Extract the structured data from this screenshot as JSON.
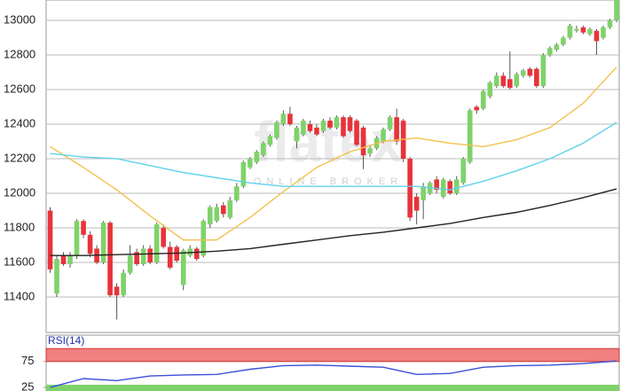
{
  "chart_data": [
    {
      "type": "candlestick",
      "watermark": {
        "logo": "flatex",
        "tagline": "ONLINE BROKER"
      },
      "xlim": [
        -0.6,
        85.4
      ],
      "ylim": [
        11195,
        13118
      ],
      "yticks": [
        11400,
        11600,
        11800,
        12000,
        12200,
        12400,
        12600,
        12800,
        13000
      ],
      "grid": true,
      "up_color": "#7fd26b",
      "down_color": "#e8333b",
      "wick_color": "#555555",
      "ohlc": [
        [
          11900,
          11920,
          11540,
          11560
        ],
        [
          11420,
          11640,
          11400,
          11620
        ],
        [
          11640,
          11660,
          11580,
          11590
        ],
        [
          11590,
          11660,
          11570,
          11640
        ],
        [
          11640,
          11850,
          11620,
          11840
        ],
        [
          11840,
          11850,
          11740,
          11760
        ],
        [
          11760,
          11780,
          11630,
          11650
        ],
        [
          11680,
          11700,
          11590,
          11600
        ],
        [
          11600,
          11840,
          11590,
          11830
        ],
        [
          11830,
          11840,
          11400,
          11410
        ],
        [
          11460,
          11480,
          11270,
          11410
        ],
        [
          11410,
          11560,
          11400,
          11540
        ],
        [
          11540,
          11700,
          11530,
          11640
        ],
        [
          11660,
          11680,
          11580,
          11590
        ],
        [
          11590,
          11700,
          11580,
          11680
        ],
        [
          11680,
          11700,
          11590,
          11600
        ],
        [
          11600,
          11830,
          11590,
          11820
        ],
        [
          11800,
          11820,
          11680,
          11690
        ],
        [
          11690,
          11720,
          11560,
          11570
        ],
        [
          11690,
          11700,
          11600,
          11610
        ],
        [
          11470,
          11680,
          11440,
          11670
        ],
        [
          11640,
          11700,
          11630,
          11680
        ],
        [
          11680,
          11690,
          11610,
          11620
        ],
        [
          11640,
          11850,
          11630,
          11840
        ],
        [
          11820,
          11930,
          11800,
          11920
        ],
        [
          11840,
          11940,
          11830,
          11920
        ],
        [
          11930,
          11950,
          11860,
          11880
        ],
        [
          11860,
          11980,
          11850,
          11960
        ],
        [
          11960,
          12060,
          11950,
          12040
        ],
        [
          12040,
          12190,
          12030,
          12180
        ],
        [
          12150,
          12210,
          12140,
          12200
        ],
        [
          12180,
          12250,
          12170,
          12240
        ],
        [
          12220,
          12300,
          12210,
          12290
        ],
        [
          12280,
          12340,
          12270,
          12330
        ],
        [
          12320,
          12420,
          12310,
          12410
        ],
        [
          12400,
          12480,
          12390,
          12460
        ],
        [
          12460,
          12500,
          12390,
          12400
        ],
        [
          12300,
          12390,
          12260,
          12380
        ],
        [
          12340,
          12430,
          12330,
          12420
        ],
        [
          12400,
          12420,
          12350,
          12360
        ],
        [
          12380,
          12400,
          12330,
          12340
        ],
        [
          12360,
          12430,
          12350,
          12420
        ],
        [
          12420,
          12440,
          12370,
          12380
        ],
        [
          12380,
          12450,
          12370,
          12440
        ],
        [
          12440,
          12450,
          12320,
          12330
        ],
        [
          12440,
          12450,
          12350,
          12360
        ],
        [
          12420,
          12430,
          12270,
          12280
        ],
        [
          12380,
          12390,
          12140,
          12220
        ],
        [
          12230,
          12280,
          12210,
          12260
        ],
        [
          12260,
          12330,
          12250,
          12320
        ],
        [
          12300,
          12380,
          12290,
          12370
        ],
        [
          12370,
          12450,
          12360,
          12440
        ],
        [
          12440,
          12490,
          12280,
          12300
        ],
        [
          12420,
          12430,
          12180,
          12200
        ],
        [
          12200,
          12210,
          11840,
          11860
        ],
        [
          11980,
          12000,
          11820,
          11900
        ],
        [
          11960,
          12060,
          11850,
          12040
        ],
        [
          12000,
          12070,
          11990,
          12060
        ],
        [
          12080,
          12100,
          12000,
          12020
        ],
        [
          11980,
          12090,
          11970,
          12080
        ],
        [
          12070,
          12080,
          11990,
          12000
        ],
        [
          12000,
          12100,
          11990,
          12080
        ],
        [
          12060,
          12210,
          12050,
          12200
        ],
        [
          12180,
          12490,
          12170,
          12480
        ],
        [
          12500,
          12510,
          12460,
          12480
        ],
        [
          12490,
          12600,
          12480,
          12590
        ],
        [
          12560,
          12650,
          12550,
          12640
        ],
        [
          12620,
          12700,
          12610,
          12680
        ],
        [
          12680,
          12700,
          12610,
          12620
        ],
        [
          12660,
          12820,
          12600,
          12610
        ],
        [
          12620,
          12700,
          12610,
          12690
        ],
        [
          12680,
          12720,
          12670,
          12710
        ],
        [
          12720,
          12730,
          12670,
          12680
        ],
        [
          12720,
          12730,
          12610,
          12620
        ],
        [
          12620,
          12810,
          12610,
          12800
        ],
        [
          12800,
          12850,
          12790,
          12840
        ],
        [
          12830,
          12870,
          12820,
          12860
        ],
        [
          12860,
          12910,
          12850,
          12900
        ],
        [
          12900,
          12980,
          12890,
          12970
        ],
        [
          12940,
          12970,
          12930,
          12950
        ],
        [
          12960,
          12970,
          12920,
          12930
        ],
        [
          12920,
          12960,
          12910,
          12950
        ],
        [
          12940,
          12950,
          12800,
          12880
        ],
        [
          12900,
          12970,
          12890,
          12960
        ],
        [
          12960,
          13010,
          12950,
          13000
        ],
        [
          13000,
          13160,
          12990,
          13140
        ]
      ],
      "series": [
        {
          "color": "#f2c14e",
          "x": [
            0,
            5,
            10,
            15,
            20,
            25,
            30,
            35,
            40,
            45,
            50,
            55,
            60,
            65,
            70,
            75,
            80,
            85
          ],
          "values": [
            12270,
            12150,
            12020,
            11870,
            11730,
            11730,
            11860,
            12010,
            12150,
            12240,
            12300,
            12320,
            12290,
            12270,
            12310,
            12380,
            12520,
            12730
          ]
        },
        {
          "color": "#5fd3ea",
          "x": [
            0,
            5,
            10,
            15,
            20,
            25,
            30,
            35,
            40,
            45,
            50,
            55,
            60,
            65,
            70,
            75,
            80,
            85
          ],
          "values": [
            12230,
            12210,
            12200,
            12160,
            12120,
            12090,
            12060,
            12040,
            12040,
            12040,
            12040,
            12040,
            12020,
            12070,
            12130,
            12200,
            12290,
            12410
          ]
        },
        {
          "color": "#222222",
          "x": [
            0,
            5,
            10,
            15,
            20,
            25,
            30,
            35,
            40,
            45,
            50,
            55,
            60,
            65,
            70,
            75,
            80,
            85
          ],
          "values": [
            11640,
            11640,
            11645,
            11650,
            11655,
            11665,
            11680,
            11705,
            11730,
            11755,
            11775,
            11800,
            11825,
            11860,
            11890,
            11930,
            11975,
            12025
          ]
        }
      ]
    },
    {
      "type": "line",
      "title": "RSI(14)",
      "xlim": [
        -0.6,
        85.4
      ],
      "ylim": [
        18,
        102
      ],
      "yticks": [
        25,
        75
      ],
      "overbought_band": [
        75,
        100
      ],
      "overbought_color": "#f08080",
      "oversold_level": 25,
      "oversold_color": "#7fd26b",
      "series": [
        {
          "color": "#3b4fd8",
          "x": [
            0,
            5,
            10,
            15,
            20,
            25,
            30,
            35,
            40,
            45,
            50,
            55,
            60,
            65,
            70,
            75,
            80,
            85
          ],
          "values": [
            25,
            42,
            38,
            47,
            49,
            50,
            60,
            67,
            68,
            66,
            64,
            50,
            52,
            64,
            67,
            68,
            71,
            76
          ]
        }
      ]
    }
  ]
}
